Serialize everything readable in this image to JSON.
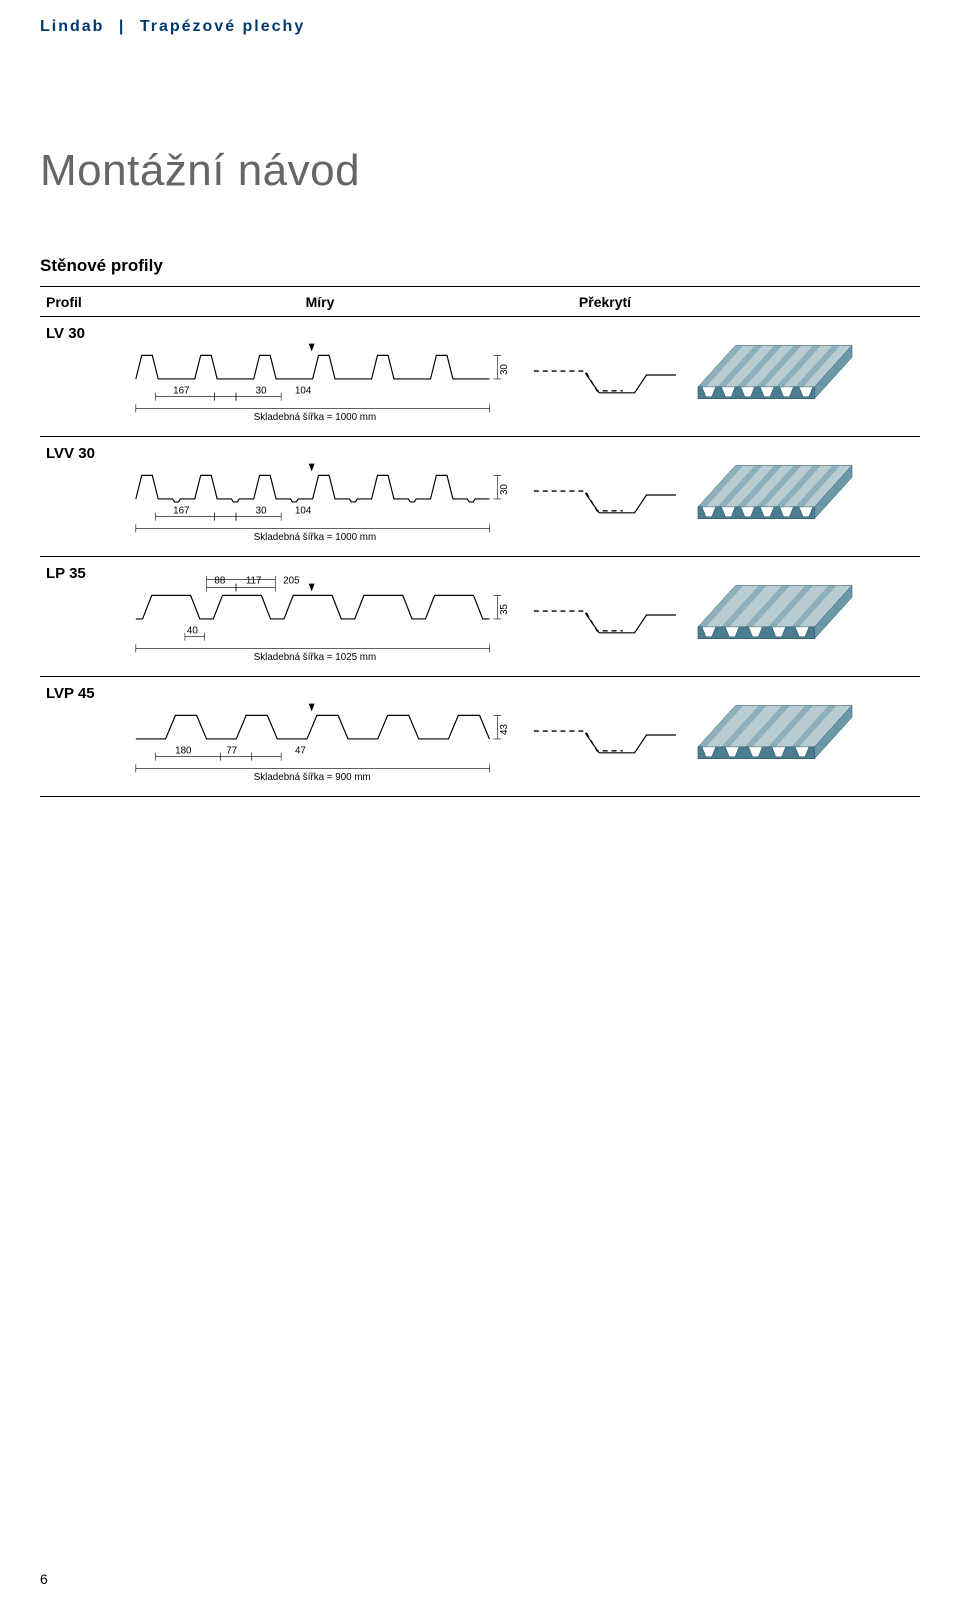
{
  "header": {
    "brand": "Lindab",
    "category": "Trapézové plechy"
  },
  "title": "Montážní návod",
  "section_heading": "Stěnové profily",
  "columns": {
    "profile": "Profil",
    "dims": "Míry",
    "overlap": "Překrytí"
  },
  "page_number": "6",
  "render_colors": {
    "top": "#b9ccd2",
    "side": "#6a98a8",
    "front": "#4a7d8f",
    "edge": "#2c5866"
  },
  "profiles": [
    {
      "code": "LV 30",
      "dims": {
        "a": "167",
        "b": "30",
        "c": "104",
        "height": "30",
        "width_label": "Skladebná šířka = 1000 mm"
      },
      "style": "narrow-valley",
      "ribs": 6
    },
    {
      "code": "LVV 30",
      "dims": {
        "a": "167",
        "b": "30",
        "c": "104",
        "height": "30",
        "width_label": "Skladebná šířka = 1000 mm"
      },
      "style": "beaded-valley",
      "ribs": 6
    },
    {
      "code": "LP 35",
      "dims": {
        "a": "88",
        "b": "117",
        "c": "205",
        "d": "40",
        "height": "35",
        "width_label": "Skladebná šířka = 1025 mm"
      },
      "style": "wide-crest",
      "ribs": 5
    },
    {
      "code": "LVP 45",
      "dims": {
        "a": "180",
        "b": "77",
        "c": "47",
        "height": "43",
        "width_label": "Skladebná šířka = 900 mm"
      },
      "style": "deep",
      "ribs": 5
    }
  ]
}
